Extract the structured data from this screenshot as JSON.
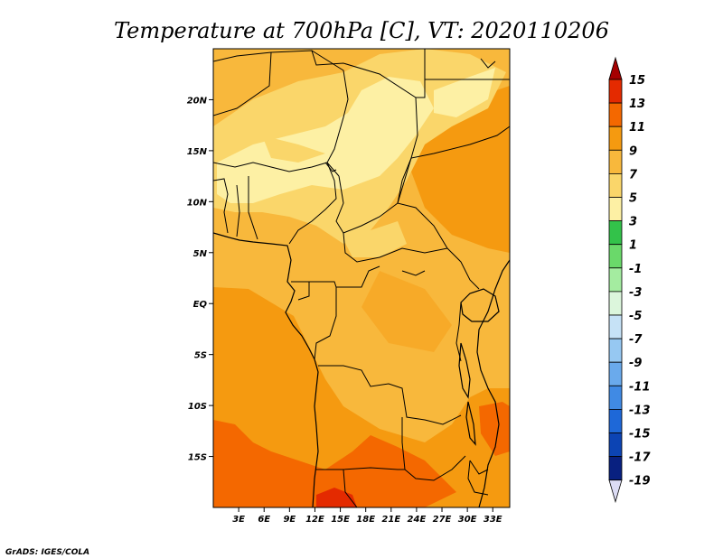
{
  "title": "Temperature at 700hPa [C], VT: 2020110206",
  "credit": "GrADS: IGES/COLA",
  "map": {
    "lon_range": [
      0,
      35
    ],
    "lat_range": [
      -20,
      25
    ],
    "lat_ticks": [
      {
        "value": 20,
        "label": "20N"
      },
      {
        "value": 15,
        "label": "15N"
      },
      {
        "value": 10,
        "label": "10N"
      },
      {
        "value": 5,
        "label": "5N"
      },
      {
        "value": 0,
        "label": "EQ"
      },
      {
        "value": -5,
        "label": "5S"
      },
      {
        "value": -10,
        "label": "10S"
      },
      {
        "value": -15,
        "label": "15S"
      }
    ],
    "lon_ticks": [
      {
        "value": 3,
        "label": "3E"
      },
      {
        "value": 6,
        "label": "6E"
      },
      {
        "value": 9,
        "label": "9E"
      },
      {
        "value": 12,
        "label": "12E"
      },
      {
        "value": 15,
        "label": "15E"
      },
      {
        "value": 18,
        "label": "18E"
      },
      {
        "value": 21,
        "label": "21E"
      },
      {
        "value": 24,
        "label": "24E"
      },
      {
        "value": 27,
        "label": "27E"
      },
      {
        "value": 30,
        "label": "30E"
      },
      {
        "value": 33,
        "label": "33E"
      }
    ]
  },
  "colorbar": {
    "levels": [
      {
        "label": "15",
        "color": "#a50000"
      },
      {
        "label": "13",
        "color": "#e42a00"
      },
      {
        "label": "11",
        "color": "#f46800"
      },
      {
        "label": "9",
        "color": "#f59a10"
      },
      {
        "label": "7",
        "color": "#f8b83c"
      },
      {
        "label": "5",
        "color": "#fad66a"
      },
      {
        "label": "3",
        "color": "#fdf0a4"
      },
      {
        "label": "1",
        "color": "#33c24a"
      },
      {
        "label": "-1",
        "color": "#6ad96a"
      },
      {
        "label": "-3",
        "color": "#a4eca0"
      },
      {
        "label": "-5",
        "color": "#dcf6dc"
      },
      {
        "label": "-7",
        "color": "#c6e2f6"
      },
      {
        "label": "-9",
        "color": "#96c8f2"
      },
      {
        "label": "-11",
        "color": "#6aaaec"
      },
      {
        "label": "-13",
        "color": "#408ae4"
      },
      {
        "label": "-15",
        "color": "#1e68d8"
      },
      {
        "label": "-17",
        "color": "#0c44b4"
      },
      {
        "label": "-19",
        "color": "#082080"
      }
    ],
    "below_min_color": "#dcdcf4"
  }
}
